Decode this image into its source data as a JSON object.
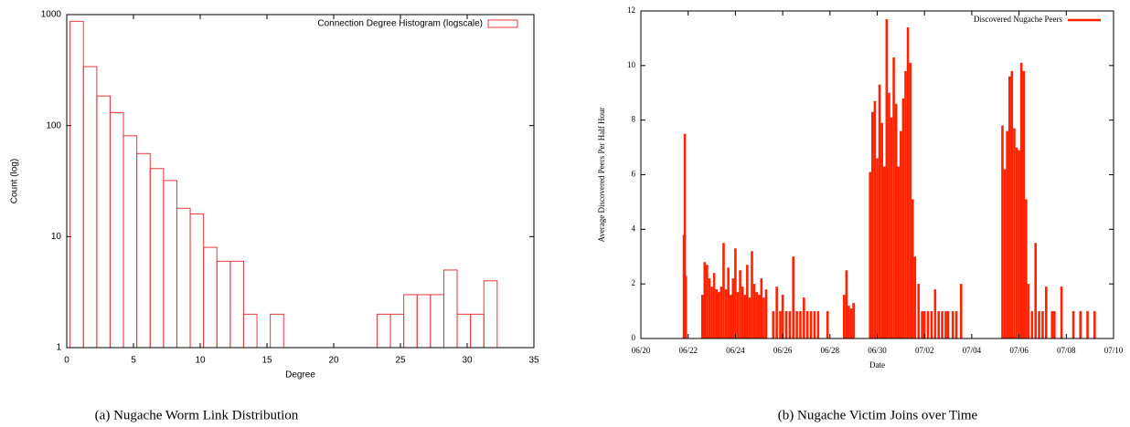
{
  "chart_data": [
    {
      "type": "histogram",
      "caption": "(a)  Nugache Worm Link Distribution",
      "xlabel": "Degree",
      "ylabel": "Count (log)",
      "log_y": true,
      "legend": "top-right",
      "series": [
        {
          "name": "Connection Degree Histogram (logscale)",
          "color": "#e8383d",
          "bins": [
            0.25,
            1.25,
            2.25,
            3.25,
            4.25,
            5.25,
            6.25,
            7.25,
            8.25,
            9.25,
            10.25,
            11.25,
            12.25,
            13.25,
            14.25,
            15.25,
            16.25,
            17.25,
            18.25,
            19.25,
            20.25,
            21.25,
            22.25,
            23.25,
            24.25,
            25.25,
            26.25,
            27.25,
            28.25,
            29.25,
            30.25,
            31.25,
            32.25
          ],
          "values": [
            870,
            340,
            185,
            131,
            81,
            56,
            41,
            32,
            18,
            16,
            8,
            6,
            6,
            2,
            null,
            2,
            null,
            null,
            null,
            null,
            null,
            null,
            null,
            2,
            2,
            3,
            3,
            3,
            5,
            2,
            2,
            4
          ]
        }
      ],
      "xlim": [
        0,
        35
      ],
      "xticks": [
        0,
        5,
        10,
        15,
        20,
        25,
        30,
        35
      ],
      "ylim": [
        1,
        1000
      ],
      "yticks": [
        1,
        10,
        100,
        1000
      ]
    },
    {
      "type": "bar",
      "caption": "(b)  Nugache Victim Joins over Time",
      "xlabel": "Date",
      "ylabel": "Average Discovered Peers Per Half Hour",
      "legend": "top-right",
      "series": [
        {
          "name": "Discovered Nugache Peers",
          "color": "#ff2200",
          "x": [
            1.82,
            1.86,
            1.9,
            2.6,
            2.7,
            2.8,
            2.9,
            3.0,
            3.1,
            3.2,
            3.3,
            3.4,
            3.5,
            3.6,
            3.7,
            3.8,
            3.9,
            4.0,
            4.1,
            4.2,
            4.3,
            4.4,
            4.5,
            4.6,
            4.7,
            4.8,
            4.9,
            5.0,
            5.1,
            5.2,
            5.3,
            5.6,
            5.75,
            5.9,
            6.0,
            6.15,
            6.3,
            6.45,
            6.6,
            6.75,
            6.9,
            7.05,
            7.2,
            7.35,
            7.5,
            7.9,
            8.6,
            8.7,
            8.8,
            8.9,
            9.0,
            9.7,
            9.8,
            9.9,
            10.0,
            10.1,
            10.2,
            10.3,
            10.4,
            10.5,
            10.6,
            10.7,
            10.8,
            10.9,
            11.0,
            11.1,
            11.2,
            11.3,
            11.4,
            11.5,
            11.6,
            11.75,
            11.9,
            12.0,
            12.15,
            12.3,
            12.45,
            12.6,
            12.75,
            12.9,
            13.0,
            13.2,
            13.35,
            13.55,
            15.3,
            15.4,
            15.5,
            15.6,
            15.7,
            15.8,
            15.9,
            16.0,
            16.1,
            16.2,
            16.3,
            16.4,
            16.55,
            16.7,
            16.85,
            17.0,
            17.15,
            17.4,
            17.5,
            17.8,
            18.3,
            18.6,
            18.9,
            19.2
          ],
          "values": [
            3.8,
            7.5,
            2.3,
            1.6,
            2.8,
            2.7,
            2.2,
            1.9,
            2.4,
            1.8,
            1.7,
            1.9,
            3.5,
            1.8,
            2.6,
            1.6,
            2.2,
            3.3,
            1.7,
            2.5,
            1.9,
            1.6,
            2.7,
            1.5,
            3.2,
            2.0,
            1.7,
            1.6,
            2.2,
            1.5,
            1.8,
            1,
            1.9,
            1,
            1.6,
            1,
            1,
            3,
            1,
            1,
            1.5,
            1,
            1,
            1,
            1,
            1,
            1.6,
            2.5,
            1.2,
            1.1,
            1.3,
            6.1,
            8.3,
            8.7,
            6.6,
            9.3,
            7.9,
            6.3,
            11.7,
            9.0,
            8.1,
            10.3,
            8.6,
            6.3,
            7.6,
            8.8,
            9.8,
            11.4,
            10.1,
            5.1,
            3.0,
            2,
            1,
            1,
            1,
            1,
            1.8,
            1,
            1,
            1,
            1,
            1,
            1,
            2,
            7.8,
            6.2,
            7.6,
            9.6,
            9.8,
            7.7,
            7.0,
            6.9,
            10.1,
            9.8,
            5.1,
            2,
            1,
            3.5,
            1,
            1,
            1.9,
            1,
            1,
            1.9,
            1,
            1,
            1,
            1
          ]
        }
      ],
      "xlim": [
        0,
        20
      ],
      "xticks": [
        {
          "value": 0,
          "label": "06/20"
        },
        {
          "value": 2,
          "label": "06/22"
        },
        {
          "value": 4,
          "label": "06/24"
        },
        {
          "value": 6,
          "label": "06/26"
        },
        {
          "value": 8,
          "label": "06/28"
        },
        {
          "value": 10,
          "label": "06/30"
        },
        {
          "value": 12,
          "label": "07/02"
        },
        {
          "value": 14,
          "label": "07/04"
        },
        {
          "value": 16,
          "label": "07/06"
        },
        {
          "value": 18,
          "label": "07/08"
        },
        {
          "value": 20,
          "label": "07/10"
        }
      ],
      "ylim": [
        0,
        12
      ],
      "yticks": [
        0,
        2,
        4,
        6,
        8,
        10,
        12
      ]
    }
  ]
}
